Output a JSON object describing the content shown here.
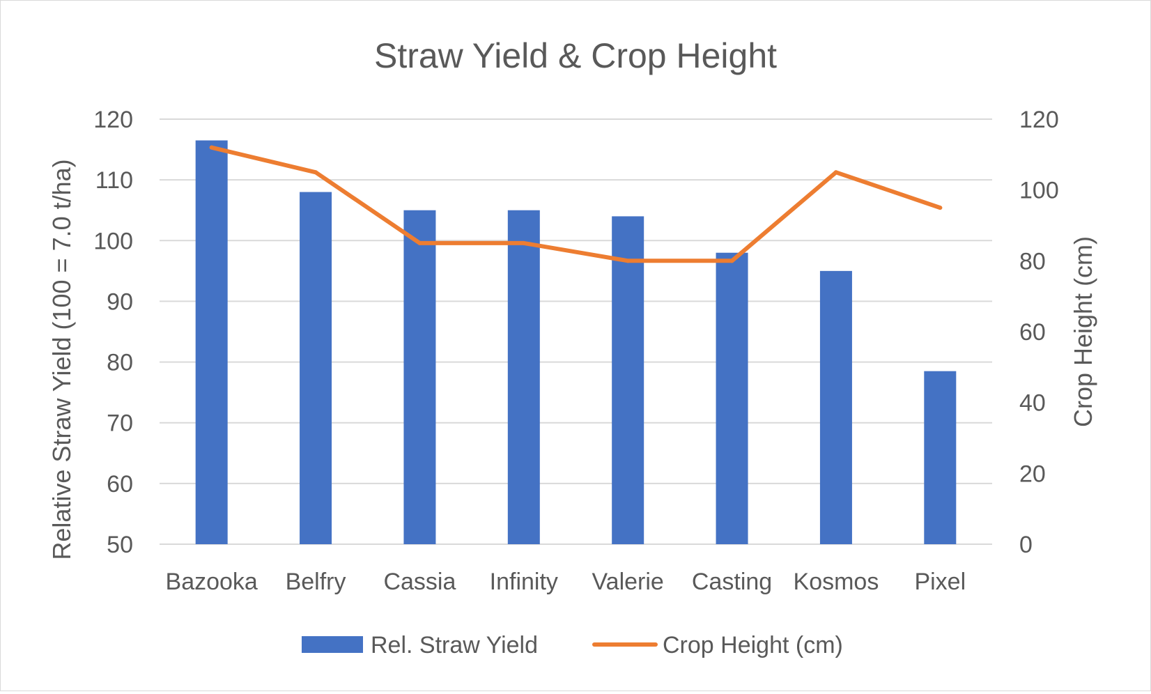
{
  "chart_data": {
    "type": "bar",
    "title": "Straw Yield & Crop Height",
    "categories": [
      "Bazooka",
      "Belfry",
      "Cassia",
      "Infinity",
      "Valerie",
      "Casting",
      "Kosmos",
      "Pixel"
    ],
    "series": [
      {
        "name": "Rel. Straw Yield",
        "type": "bar",
        "axis": "left",
        "color": "#4472C4",
        "values": [
          116.5,
          108,
          105,
          105,
          104,
          98,
          95,
          78.5
        ]
      },
      {
        "name": "Crop Height (cm)",
        "type": "line",
        "axis": "right",
        "color": "#ED7D31",
        "values": [
          112,
          105,
          85,
          85,
          80,
          80,
          105,
          95
        ]
      }
    ],
    "ylabel": "Relative Straw Yield (100 = 7.0 t/ha)",
    "y2label": "Crop Height (cm)",
    "ylim": [
      50,
      120
    ],
    "y2lim": [
      0,
      120
    ],
    "yticks": [
      50,
      60,
      70,
      80,
      90,
      100,
      110,
      120
    ],
    "y2ticks": [
      0,
      20,
      40,
      60,
      80,
      100,
      120
    ],
    "grid": true,
    "legend": "bottom"
  },
  "colors": {
    "text": "#595959",
    "grid": "#d9d9d9"
  }
}
